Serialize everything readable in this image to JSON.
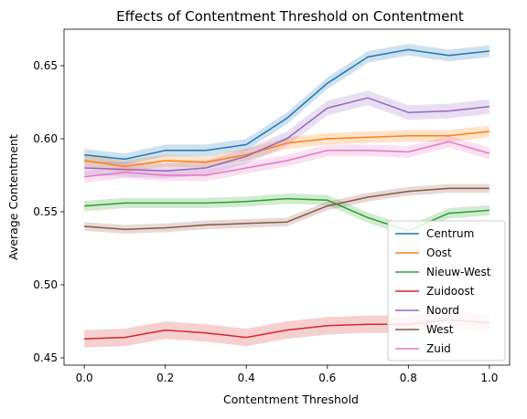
{
  "chart_data": {
    "type": "line",
    "title": "Effects of Contentment Threshold on Contentment",
    "xlabel": "Contentment Threshold",
    "ylabel": "Average Contentment",
    "xlim": [
      -0.05,
      1.05
    ],
    "ylim": [
      0.445,
      0.675
    ],
    "xticks": [
      0.0,
      0.2,
      0.4,
      0.6,
      0.8,
      1.0
    ],
    "xtick_labels": [
      "0.0",
      "0.2",
      "0.4",
      "0.6",
      "0.8",
      "1.0"
    ],
    "yticks": [
      0.45,
      0.5,
      0.55,
      0.6,
      0.65
    ],
    "ytick_labels": [
      "0.45",
      "0.50",
      "0.55",
      "0.60",
      "0.65"
    ],
    "grid": false,
    "legend_position": "lower-right",
    "x": [
      0.0,
      0.1,
      0.2,
      0.3,
      0.4,
      0.5,
      0.6,
      0.7,
      0.8,
      0.9,
      1.0
    ],
    "series": [
      {
        "name": "Centrum",
        "color": "#1f77b4",
        "band": 0.004,
        "values": [
          0.589,
          0.586,
          0.592,
          0.592,
          0.596,
          0.614,
          0.638,
          0.656,
          0.661,
          0.657,
          0.66
        ]
      },
      {
        "name": "Oost",
        "color": "#ff7f0e",
        "band": 0.004,
        "values": [
          0.585,
          0.581,
          0.585,
          0.584,
          0.589,
          0.597,
          0.6,
          0.601,
          0.602,
          0.602,
          0.605
        ]
      },
      {
        "name": "Nieuw-West",
        "color": "#2ca02c",
        "band": 0.0035,
        "values": [
          0.554,
          0.556,
          0.556,
          0.556,
          0.557,
          0.559,
          0.558,
          0.546,
          0.537,
          0.549,
          0.551
        ]
      },
      {
        "name": "Zuidoost",
        "color": "#d62728",
        "band": 0.006,
        "values": [
          0.463,
          0.464,
          0.469,
          0.467,
          0.464,
          0.469,
          0.472,
          0.473,
          0.473,
          0.476,
          0.474
        ]
      },
      {
        "name": "Noord",
        "color": "#9467bd",
        "band": 0.005,
        "values": [
          0.58,
          0.579,
          0.578,
          0.58,
          0.588,
          0.6,
          0.621,
          0.628,
          0.618,
          0.619,
          0.622
        ]
      },
      {
        "name": "West",
        "color": "#8c564b",
        "band": 0.003,
        "values": [
          0.54,
          0.538,
          0.539,
          0.541,
          0.542,
          0.543,
          0.554,
          0.56,
          0.564,
          0.566,
          0.566
        ]
      },
      {
        "name": "Zuid",
        "color": "#e377c2",
        "band": 0.004,
        "values": [
          0.574,
          0.577,
          0.575,
          0.575,
          0.58,
          0.585,
          0.592,
          0.592,
          0.591,
          0.598,
          0.59
        ]
      }
    ]
  }
}
